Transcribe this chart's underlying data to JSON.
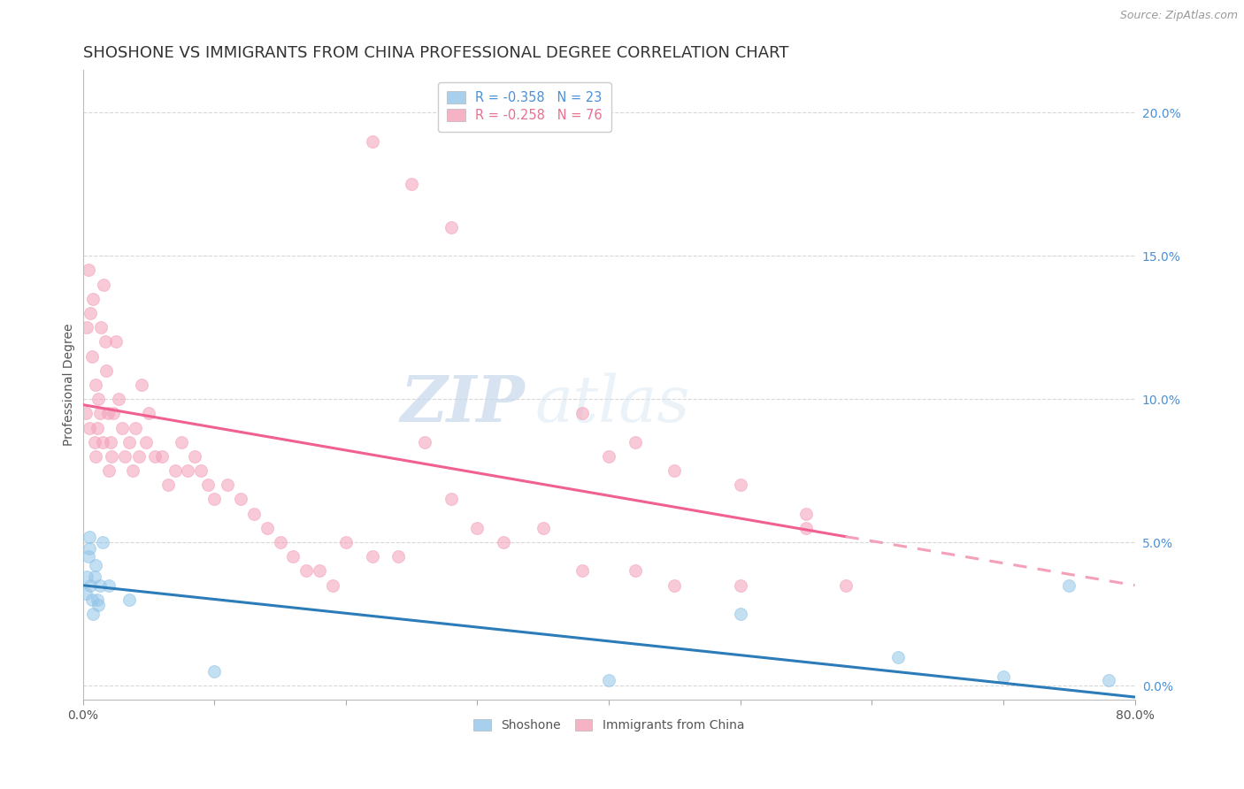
{
  "title": "SHOSHONE VS IMMIGRANTS FROM CHINA PROFESSIONAL DEGREE CORRELATION CHART",
  "source": "Source: ZipAtlas.com",
  "ylabel": "Professional Degree",
  "right_ytick_vals": [
    0.0,
    5.0,
    10.0,
    15.0,
    20.0
  ],
  "xmin": 0.0,
  "xmax": 80.0,
  "ymin": -0.5,
  "ymax": 21.5,
  "watermark_zip": "ZIP",
  "watermark_atlas": "atlas",
  "shoshone_color": "#92C5E8",
  "china_color": "#F4A0B8",
  "shoshone_line_color": "#2B7CB8",
  "china_line_color": "#F06090",
  "china_dash_color": "#F4A0B8",
  "background_color": "#FFFFFF",
  "grid_color": "#D8D8D8",
  "marker_size": 100,
  "marker_alpha": 0.55,
  "title_fontsize": 13,
  "axis_fontsize": 10,
  "tick_fontsize": 10,
  "shoshone_x": [
    0.2,
    0.3,
    0.4,
    0.5,
    0.5,
    0.6,
    0.7,
    0.8,
    0.9,
    1.0,
    1.1,
    1.2,
    1.3,
    1.5,
    2.0,
    3.5,
    10.0,
    40.0,
    50.0,
    62.0,
    70.0,
    75.0,
    78.0
  ],
  "shoshone_y": [
    3.2,
    3.8,
    4.5,
    5.2,
    4.8,
    3.5,
    3.0,
    2.5,
    3.8,
    4.2,
    3.0,
    2.8,
    3.5,
    5.0,
    3.5,
    3.0,
    0.5,
    0.2,
    2.5,
    1.0,
    0.3,
    3.5,
    0.2
  ],
  "china_x": [
    0.2,
    0.3,
    0.4,
    0.5,
    0.6,
    0.7,
    0.8,
    0.9,
    1.0,
    1.0,
    1.1,
    1.2,
    1.3,
    1.4,
    1.5,
    1.6,
    1.7,
    1.8,
    1.9,
    2.0,
    2.1,
    2.2,
    2.3,
    2.5,
    2.7,
    3.0,
    3.2,
    3.5,
    3.8,
    4.0,
    4.3,
    4.5,
    4.8,
    5.0,
    5.5,
    6.0,
    6.5,
    7.0,
    7.5,
    8.0,
    8.5,
    9.0,
    9.5,
    10.0,
    11.0,
    12.0,
    13.0,
    14.0,
    15.0,
    16.0,
    17.0,
    18.0,
    19.0,
    20.0,
    22.0,
    24.0,
    26.0,
    28.0,
    30.0,
    32.0,
    35.0,
    38.0,
    42.0,
    45.0,
    50.0,
    55.0,
    58.0,
    38.0,
    40.0,
    42.0,
    45.0,
    50.0,
    55.0,
    22.0,
    25.0,
    28.0
  ],
  "china_y": [
    9.5,
    12.5,
    14.5,
    9.0,
    13.0,
    11.5,
    13.5,
    8.5,
    10.5,
    8.0,
    9.0,
    10.0,
    9.5,
    12.5,
    8.5,
    14.0,
    12.0,
    11.0,
    9.5,
    7.5,
    8.5,
    8.0,
    9.5,
    12.0,
    10.0,
    9.0,
    8.0,
    8.5,
    7.5,
    9.0,
    8.0,
    10.5,
    8.5,
    9.5,
    8.0,
    8.0,
    7.0,
    7.5,
    8.5,
    7.5,
    8.0,
    7.5,
    7.0,
    6.5,
    7.0,
    6.5,
    6.0,
    5.5,
    5.0,
    4.5,
    4.0,
    4.0,
    3.5,
    5.0,
    4.5,
    4.5,
    8.5,
    6.5,
    5.5,
    5.0,
    5.5,
    4.0,
    4.0,
    3.5,
    7.0,
    6.0,
    3.5,
    9.5,
    8.0,
    8.5,
    7.5,
    3.5,
    5.5,
    19.0,
    17.5,
    16.0
  ],
  "china_line_start_x": 0.0,
  "china_line_start_y": 9.8,
  "china_line_end_x": 58.0,
  "china_line_end_y": 5.2,
  "china_dash_start_x": 58.0,
  "china_dash_start_y": 5.2,
  "china_dash_end_x": 80.0,
  "china_dash_end_y": 3.5,
  "shoshone_line_start_x": 0.0,
  "shoshone_line_start_y": 3.5,
  "shoshone_line_end_x": 80.0,
  "shoshone_line_end_y": -0.4
}
